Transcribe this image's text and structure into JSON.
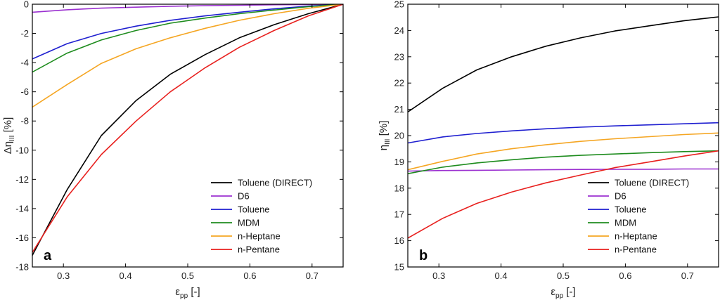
{
  "chart_data": [
    {
      "type": "line",
      "panel_letter": "a",
      "xlabel_main": "ε",
      "xlabel_sub": "pp",
      "xlabel_suffix": " [-]",
      "ylabel_main": "Δη",
      "ylabel_sub": "III",
      "ylabel_suffix": " [%]",
      "xlim": [
        0.25,
        0.75
      ],
      "ylim": [
        -18,
        0
      ],
      "xticks": [
        "0.3",
        "0.4",
        "0.5",
        "0.6",
        "0.7"
      ],
      "xtick_values": [
        0.3,
        0.4,
        0.5,
        0.6,
        0.7
      ],
      "yticks": [
        "-18",
        "-16",
        "-14",
        "-12",
        "-10",
        "-8",
        "-6",
        "-4",
        "-2",
        "0"
      ],
      "ytick_values": [
        -18,
        -16,
        -14,
        -12,
        -10,
        -8,
        -6,
        -4,
        -2,
        0
      ],
      "legend_position": "bottom-right",
      "series": [
        {
          "name": "Toluene (DIRECT)",
          "color": "#000000",
          "x": [
            0.25,
            0.306,
            0.361,
            0.417,
            0.472,
            0.528,
            0.583,
            0.639,
            0.694,
            0.75
          ],
          "y": [
            -17.2,
            -12.7,
            -9.0,
            -6.6,
            -4.8,
            -3.45,
            -2.3,
            -1.4,
            -0.65,
            0.0
          ]
        },
        {
          "name": "D6",
          "color": "#9b30d0",
          "x": [
            0.25,
            0.306,
            0.361,
            0.417,
            0.472,
            0.528,
            0.583,
            0.639,
            0.694,
            0.75
          ],
          "y": [
            -0.55,
            -0.38,
            -0.27,
            -0.2,
            -0.14,
            -0.1,
            -0.07,
            -0.04,
            -0.02,
            0.0
          ]
        },
        {
          "name": "Toluene",
          "color": "#1f1fd0",
          "x": [
            0.25,
            0.306,
            0.361,
            0.417,
            0.472,
            0.528,
            0.583,
            0.639,
            0.694,
            0.75
          ],
          "y": [
            -3.75,
            -2.7,
            -2.0,
            -1.5,
            -1.1,
            -0.8,
            -0.55,
            -0.32,
            -0.13,
            0.0
          ]
        },
        {
          "name": "MDM",
          "color": "#1e8c1e",
          "x": [
            0.25,
            0.306,
            0.361,
            0.417,
            0.472,
            0.528,
            0.583,
            0.639,
            0.694,
            0.75
          ],
          "y": [
            -4.65,
            -3.35,
            -2.45,
            -1.8,
            -1.3,
            -0.95,
            -0.65,
            -0.4,
            -0.17,
            0.0
          ]
        },
        {
          "name": "n-Heptane",
          "color": "#f5a623",
          "x": [
            0.25,
            0.306,
            0.361,
            0.417,
            0.472,
            0.528,
            0.583,
            0.639,
            0.694,
            0.75
          ],
          "y": [
            -7.05,
            -5.5,
            -4.05,
            -3.05,
            -2.3,
            -1.65,
            -1.1,
            -0.65,
            -0.28,
            0.0
          ]
        },
        {
          "name": "n-Pentane",
          "color": "#e8201e",
          "x": [
            0.25,
            0.306,
            0.361,
            0.417,
            0.472,
            0.528,
            0.583,
            0.639,
            0.694,
            0.75
          ],
          "y": [
            -17.0,
            -13.2,
            -10.3,
            -8.0,
            -6.0,
            -4.35,
            -2.95,
            -1.8,
            -0.8,
            0.0
          ]
        }
      ]
    },
    {
      "type": "line",
      "panel_letter": "b",
      "xlabel_main": "ε",
      "xlabel_sub": "pp",
      "xlabel_suffix": " [-]",
      "ylabel_main": "η",
      "ylabel_sub": "III",
      "ylabel_suffix": " [%]",
      "xlim": [
        0.25,
        0.75
      ],
      "ylim": [
        15,
        25
      ],
      "xticks": [
        "0.3",
        "0.4",
        "0.5",
        "0.6",
        "0.7"
      ],
      "xtick_values": [
        0.3,
        0.4,
        0.5,
        0.6,
        0.7
      ],
      "yticks": [
        "15",
        "16",
        "17",
        "18",
        "19",
        "20",
        "21",
        "22",
        "23",
        "24",
        "25"
      ],
      "ytick_values": [
        15,
        16,
        17,
        18,
        19,
        20,
        21,
        22,
        23,
        24,
        25
      ],
      "legend_position": "bottom-right",
      "series": [
        {
          "name": "Toluene (DIRECT)",
          "color": "#000000",
          "x": [
            0.25,
            0.306,
            0.361,
            0.417,
            0.472,
            0.528,
            0.583,
            0.639,
            0.694,
            0.75
          ],
          "y": [
            20.9,
            21.8,
            22.5,
            23.0,
            23.4,
            23.72,
            23.98,
            24.18,
            24.37,
            24.52
          ]
        },
        {
          "name": "D6",
          "color": "#9b30d0",
          "x": [
            0.25,
            0.306,
            0.361,
            0.417,
            0.472,
            0.528,
            0.583,
            0.639,
            0.694,
            0.75
          ],
          "y": [
            18.65,
            18.67,
            18.68,
            18.69,
            18.7,
            18.71,
            18.72,
            18.72,
            18.73,
            18.73
          ]
        },
        {
          "name": "Toluene",
          "color": "#1f1fd0",
          "x": [
            0.25,
            0.306,
            0.361,
            0.417,
            0.472,
            0.528,
            0.583,
            0.639,
            0.694,
            0.75
          ],
          "y": [
            19.72,
            19.95,
            20.08,
            20.18,
            20.26,
            20.32,
            20.37,
            20.41,
            20.45,
            20.49
          ]
        },
        {
          "name": "MDM",
          "color": "#1e8c1e",
          "x": [
            0.25,
            0.306,
            0.361,
            0.417,
            0.472,
            0.528,
            0.583,
            0.639,
            0.694,
            0.75
          ],
          "y": [
            18.55,
            18.8,
            18.96,
            19.08,
            19.18,
            19.25,
            19.3,
            19.35,
            19.39,
            19.42
          ]
        },
        {
          "name": "n-Heptane",
          "color": "#f5a623",
          "x": [
            0.25,
            0.306,
            0.361,
            0.417,
            0.472,
            0.528,
            0.583,
            0.639,
            0.694,
            0.75
          ],
          "y": [
            18.7,
            19.02,
            19.3,
            19.5,
            19.65,
            19.78,
            19.88,
            19.96,
            20.04,
            20.1
          ]
        },
        {
          "name": "n-Pentane",
          "color": "#e8201e",
          "x": [
            0.25,
            0.306,
            0.361,
            0.417,
            0.472,
            0.528,
            0.583,
            0.639,
            0.694,
            0.75
          ],
          "y": [
            16.1,
            16.85,
            17.42,
            17.85,
            18.2,
            18.5,
            18.78,
            19.0,
            19.22,
            19.42
          ]
        }
      ]
    }
  ]
}
